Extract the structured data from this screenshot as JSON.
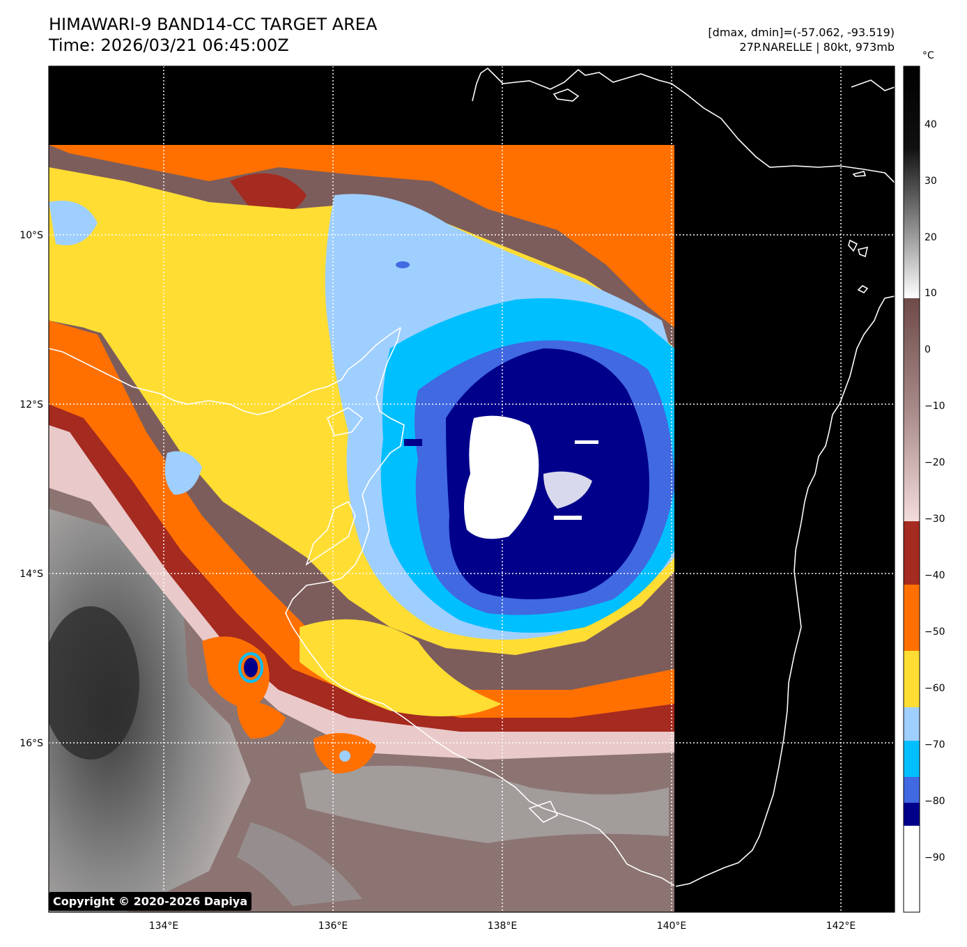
{
  "header": {
    "title": "HIMAWARI-9 BAND14-CC TARGET AREA",
    "time": "Time: 2026/03/21 06:45:00Z",
    "range": "[dmax, dmin]=(-57.062, -93.519)",
    "storm": "27P.NARELLE | 80kt, 973mb"
  },
  "map": {
    "lat_labels": [
      "10°S",
      "12°S",
      "14°S",
      "16°S"
    ],
    "lon_labels": [
      "134°E",
      "136°E",
      "138°E",
      "140°E",
      "142°E"
    ],
    "copyright": "Copyright © 2020-2026 Dapiya"
  },
  "colorbar": {
    "unit": "°C",
    "tick_labels": [
      "40",
      "30",
      "20",
      "10",
      "0",
      "−10",
      "−20",
      "−30",
      "−40",
      "−50",
      "−60",
      "−70",
      "−80",
      "−90"
    ],
    "colors": {
      "warm_top": "#000000",
      "warm_gray": "#808080",
      "warm_bottom": "#ffffff",
      "brown": "#6e4a48",
      "pink": "#f2d8d8",
      "dark_red": "#a52a20",
      "orange": "#ff7000",
      "yellow": "#ffdd33",
      "light_blue": "#9fcfff",
      "sky_blue": "#00bfff",
      "royal_blue": "#4169e1",
      "navy": "#00008b",
      "white": "#ffffff"
    }
  }
}
